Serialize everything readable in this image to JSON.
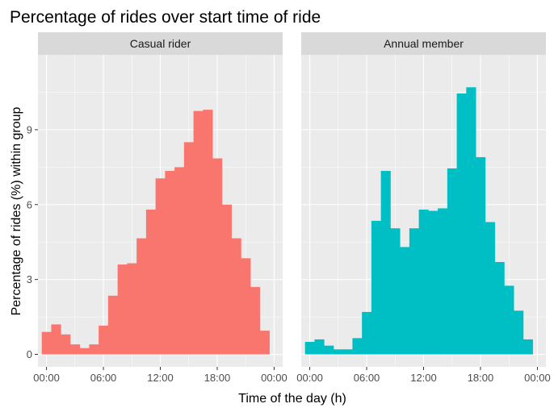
{
  "chart_data": {
    "type": "bar",
    "title": "Percentage of rides over start time of ride",
    "xlabel": "Time of the day (h)",
    "ylabel": "Percentage of rides (%) within group",
    "x_tick_labels": [
      "00:00",
      "06:00",
      "12:00",
      "18:00",
      "00:00"
    ],
    "x_tick_hours": [
      0,
      6,
      12,
      18,
      24
    ],
    "y_ticks": [
      0,
      3,
      6,
      9
    ],
    "xlim": [
      -0.9,
      24.9
    ],
    "ylim": [
      -0.5,
      12.0
    ],
    "grid": true,
    "bin_width_hours": 1,
    "hours": [
      0,
      1,
      2,
      3,
      4,
      5,
      6,
      7,
      8,
      9,
      10,
      11,
      12,
      13,
      14,
      15,
      16,
      17,
      18,
      19,
      20,
      21,
      22,
      23
    ],
    "panels": [
      {
        "name": "Casual rider",
        "color": "#F8766D",
        "values": [
          0.9,
          1.2,
          0.8,
          0.4,
          0.25,
          0.4,
          1.15,
          2.35,
          3.6,
          3.65,
          4.65,
          5.8,
          7.05,
          7.35,
          7.5,
          8.5,
          9.75,
          9.8,
          7.85,
          6.0,
          4.65,
          3.85,
          2.7,
          0.95
        ]
      },
      {
        "name": "Annual member",
        "color": "#00BFC4",
        "values": [
          0.5,
          0.6,
          0.35,
          0.2,
          0.2,
          0.65,
          1.7,
          5.35,
          7.35,
          5.05,
          4.3,
          5.05,
          5.8,
          5.75,
          5.85,
          7.45,
          10.45,
          10.7,
          7.9,
          5.3,
          3.7,
          2.75,
          1.75,
          0.6
        ]
      }
    ]
  }
}
